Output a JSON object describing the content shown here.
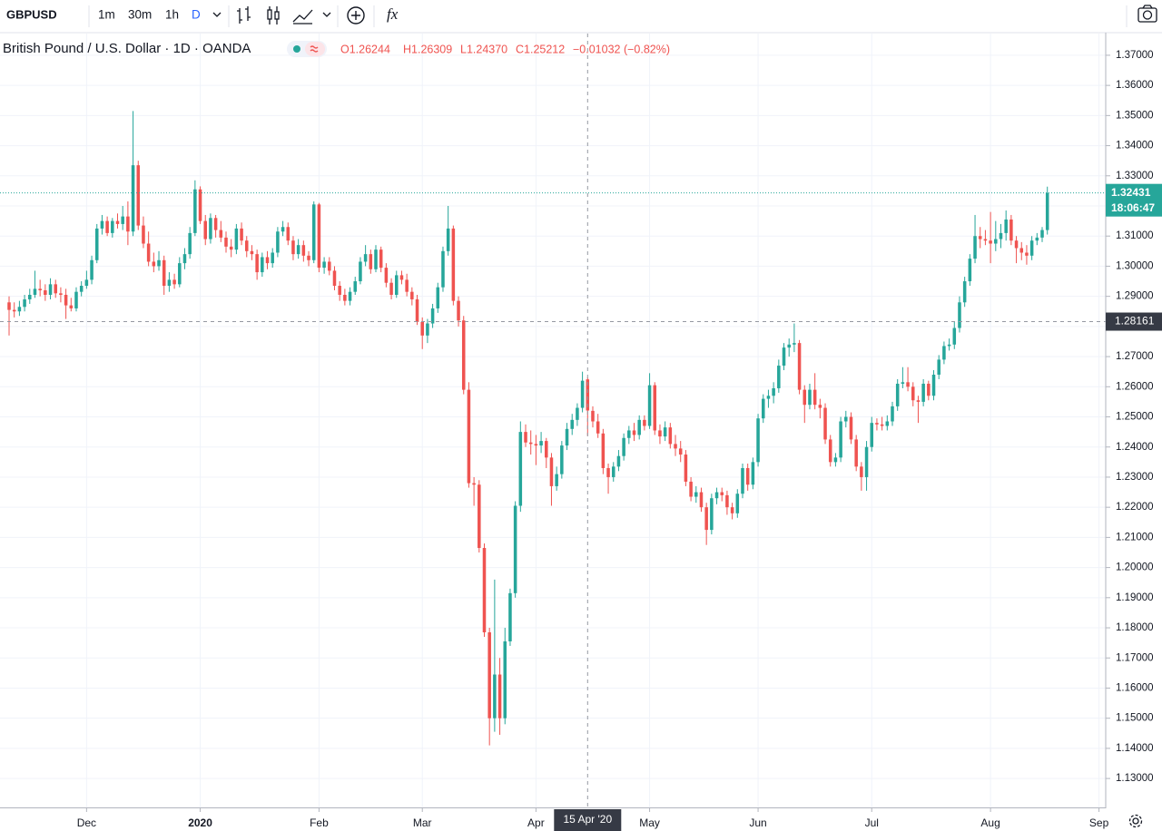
{
  "toolbar": {
    "symbol": "GBPUSD",
    "intervals": [
      "1m",
      "30m",
      "1h",
      "D"
    ],
    "active_interval": 3,
    "functions": "fx"
  },
  "chart_data": {
    "type": "candlestick",
    "title": "British Pound / U.S. Dollar · 1D · OANDA",
    "ohlc_readout": [
      "O1.26244",
      "H1.26309",
      "L1.24370",
      "C1.25212",
      "−0.01032 (−0.82%)"
    ],
    "up_color": "#26a69a",
    "down_color": "#ef5350",
    "grid": true,
    "ylim": [
      1.1204,
      1.3772
    ],
    "yticks": [
      {
        "value": 1.13,
        "label": "1.13000"
      },
      {
        "value": 1.14,
        "label": "1.14000"
      },
      {
        "value": 1.15,
        "label": "1.15000"
      },
      {
        "value": 1.16,
        "label": "1.16000"
      },
      {
        "value": 1.17,
        "label": "1.17000"
      },
      {
        "value": 1.18,
        "label": "1.18000"
      },
      {
        "value": 1.19,
        "label": "1.19000"
      },
      {
        "value": 1.2,
        "label": "1.20000"
      },
      {
        "value": 1.21,
        "label": "1.21000"
      },
      {
        "value": 1.22,
        "label": "1.22000"
      },
      {
        "value": 1.23,
        "label": "1.23000"
      },
      {
        "value": 1.24,
        "label": "1.24000"
      },
      {
        "value": 1.25,
        "label": "1.25000"
      },
      {
        "value": 1.26,
        "label": "1.26000"
      },
      {
        "value": 1.27,
        "label": "1.27000"
      },
      {
        "value": 1.28,
        "label": "1.28000"
      },
      {
        "value": 1.29,
        "label": "1.29000"
      },
      {
        "value": 1.3,
        "label": "1.30000"
      },
      {
        "value": 1.31,
        "label": "1.31000"
      },
      {
        "value": 1.32,
        "label": "1.32000"
      },
      {
        "value": 1.33,
        "label": "1.33000"
      },
      {
        "value": 1.34,
        "label": "1.34000"
      },
      {
        "value": 1.35,
        "label": "1.35000"
      },
      {
        "value": 1.36,
        "label": "1.36000"
      },
      {
        "value": 1.37,
        "label": "1.37000"
      }
    ],
    "xlim": [
      -1.76,
      212.3
    ],
    "xticks": [
      {
        "value": 15,
        "label": "Dec"
      },
      {
        "value": 37,
        "label": "2020"
      },
      {
        "value": 60,
        "label": "Feb"
      },
      {
        "value": 80,
        "label": "Mar"
      },
      {
        "value": 102,
        "label": "Apr"
      },
      {
        "value": 124,
        "label": "May"
      },
      {
        "value": 145,
        "label": "Jun"
      },
      {
        "value": 167,
        "label": "Jul"
      },
      {
        "value": 190,
        "label": "Aug"
      },
      {
        "value": 211,
        "label": "Sep"
      }
    ],
    "last_price": 1.32431,
    "countdown": "18:06:47",
    "crosshair": {
      "x": 112,
      "y": 1.28161,
      "x_label": "15 Apr '20"
    },
    "candles": [
      [
        1.288,
        1.29,
        1.277,
        1.2855
      ],
      [
        1.2855,
        1.288,
        1.283,
        1.285
      ],
      [
        1.285,
        1.2885,
        1.2835,
        1.2865
      ],
      [
        1.2865,
        1.2905,
        1.285,
        1.289
      ],
      [
        1.289,
        1.2925,
        1.2875,
        1.2905
      ],
      [
        1.2905,
        1.2985,
        1.2895,
        1.2925
      ],
      [
        1.2925,
        1.2955,
        1.29,
        1.292
      ],
      [
        1.292,
        1.294,
        1.2885,
        1.2905
      ],
      [
        1.2905,
        1.296,
        1.289,
        1.294
      ],
      [
        1.294,
        1.2955,
        1.2895,
        1.291
      ],
      [
        1.291,
        1.293,
        1.288,
        1.2905
      ],
      [
        1.2905,
        1.2925,
        1.2825,
        1.287
      ],
      [
        1.287,
        1.2895,
        1.285,
        1.286
      ],
      [
        1.286,
        1.293,
        1.285,
        1.2915
      ],
      [
        1.2915,
        1.295,
        1.29,
        1.2935
      ],
      [
        1.2935,
        1.2985,
        1.2925,
        1.2955
      ],
      [
        1.2955,
        1.3035,
        1.294,
        1.302
      ],
      [
        1.302,
        1.314,
        1.301,
        1.3125
      ],
      [
        1.3125,
        1.317,
        1.3105,
        1.315
      ],
      [
        1.315,
        1.3165,
        1.31,
        1.311
      ],
      [
        1.311,
        1.316,
        1.3095,
        1.315
      ],
      [
        1.315,
        1.3175,
        1.3125,
        1.314
      ],
      [
        1.314,
        1.32,
        1.312,
        1.3165
      ],
      [
        1.3165,
        1.3215,
        1.307,
        1.3115
      ],
      [
        1.3115,
        1.3515,
        1.31,
        1.3335
      ],
      [
        1.3335,
        1.335,
        1.312,
        1.3135
      ],
      [
        1.3135,
        1.3165,
        1.306,
        1.3075
      ],
      [
        1.3075,
        1.3115,
        1.3,
        1.3015
      ],
      [
        1.3015,
        1.3045,
        1.298,
        1.3
      ],
      [
        1.3,
        1.305,
        1.2985,
        1.302
      ],
      [
        1.302,
        1.3035,
        1.2905,
        1.2935
      ],
      [
        1.2935,
        1.298,
        1.2915,
        1.2955
      ],
      [
        1.2955,
        1.2975,
        1.2925,
        1.294
      ],
      [
        1.294,
        1.303,
        1.293,
        1.301
      ],
      [
        1.301,
        1.306,
        1.299,
        1.304
      ],
      [
        1.304,
        1.313,
        1.3025,
        1.311
      ],
      [
        1.311,
        1.3285,
        1.31,
        1.3255
      ],
      [
        1.3255,
        1.3265,
        1.314,
        1.315
      ],
      [
        1.315,
        1.317,
        1.307,
        1.309
      ],
      [
        1.309,
        1.3175,
        1.3075,
        1.316
      ],
      [
        1.316,
        1.317,
        1.3095,
        1.312
      ],
      [
        1.312,
        1.315,
        1.308,
        1.3095
      ],
      [
        1.3095,
        1.3115,
        1.3045,
        1.3065
      ],
      [
        1.3065,
        1.309,
        1.303,
        1.3055
      ],
      [
        1.3055,
        1.314,
        1.304,
        1.3125
      ],
      [
        1.3125,
        1.3145,
        1.307,
        1.3085
      ],
      [
        1.3085,
        1.31,
        1.303,
        1.305
      ],
      [
        1.305,
        1.307,
        1.302,
        1.304
      ],
      [
        1.304,
        1.3055,
        1.2955,
        1.298
      ],
      [
        1.298,
        1.3045,
        1.2965,
        1.303
      ],
      [
        1.303,
        1.305,
        1.299,
        1.301
      ],
      [
        1.301,
        1.306,
        1.2995,
        1.3045
      ],
      [
        1.3045,
        1.313,
        1.303,
        1.3115
      ],
      [
        1.3115,
        1.315,
        1.31,
        1.313
      ],
      [
        1.313,
        1.3145,
        1.307,
        1.3085
      ],
      [
        1.3085,
        1.31,
        1.302,
        1.304
      ],
      [
        1.304,
        1.309,
        1.3025,
        1.307
      ],
      [
        1.307,
        1.3085,
        1.3015,
        1.3035
      ],
      [
        1.3035,
        1.305,
        1.3,
        1.302
      ],
      [
        1.302,
        1.3215,
        1.301,
        1.3205
      ],
      [
        1.3205,
        1.321,
        1.298,
        1.2995
      ],
      [
        1.2995,
        1.303,
        1.2975,
        1.3015
      ],
      [
        1.3015,
        1.303,
        1.297,
        1.2985
      ],
      [
        1.2985,
        1.3,
        1.292,
        1.2935
      ],
      [
        1.2935,
        1.295,
        1.2885,
        1.2905
      ],
      [
        1.2905,
        1.2925,
        1.287,
        1.2885
      ],
      [
        1.2885,
        1.293,
        1.287,
        1.2915
      ],
      [
        1.2915,
        1.2965,
        1.2905,
        1.295
      ],
      [
        1.295,
        1.303,
        1.294,
        1.3015
      ],
      [
        1.3015,
        1.307,
        1.3,
        1.304
      ],
      [
        1.304,
        1.3055,
        1.2975,
        1.299
      ],
      [
        1.299,
        1.307,
        1.298,
        1.3055
      ],
      [
        1.3055,
        1.3065,
        1.298,
        1.2995
      ],
      [
        1.2995,
        1.301,
        1.293,
        1.2945
      ],
      [
        1.2945,
        1.296,
        1.289,
        1.2905
      ],
      [
        1.2905,
        1.2985,
        1.2895,
        1.297
      ],
      [
        1.297,
        1.2985,
        1.294,
        1.2955
      ],
      [
        1.2955,
        1.2975,
        1.29,
        1.2915
      ],
      [
        1.2915,
        1.293,
        1.287,
        1.289
      ],
      [
        1.289,
        1.2905,
        1.2805,
        1.2815
      ],
      [
        1.2815,
        1.283,
        1.2725,
        1.277
      ],
      [
        1.277,
        1.2825,
        1.2745,
        1.281
      ],
      [
        1.281,
        1.2875,
        1.2795,
        1.286
      ],
      [
        1.286,
        1.2945,
        1.2845,
        1.293
      ],
      [
        1.293,
        1.3065,
        1.2915,
        1.305
      ],
      [
        1.305,
        1.32,
        1.3035,
        1.3125
      ],
      [
        1.3125,
        1.3135,
        1.287,
        1.2885
      ],
      [
        1.2885,
        1.29,
        1.28,
        1.282
      ],
      [
        1.282,
        1.2835,
        1.2575,
        1.259
      ],
      [
        1.259,
        1.2615,
        1.2265,
        1.228
      ],
      [
        1.228,
        1.23,
        1.2205,
        1.2275
      ],
      [
        1.2275,
        1.229,
        1.205,
        1.2065
      ],
      [
        1.2065,
        1.208,
        1.177,
        1.1785
      ],
      [
        1.1785,
        1.18,
        1.141,
        1.15
      ],
      [
        1.15,
        1.196,
        1.1455,
        1.1645
      ],
      [
        1.1645,
        1.17,
        1.1445,
        1.15
      ],
      [
        1.15,
        1.18,
        1.148,
        1.1755
      ],
      [
        1.1755,
        1.193,
        1.174,
        1.1915
      ],
      [
        1.1915,
        1.222,
        1.19,
        1.2205
      ],
      [
        1.2205,
        1.2485,
        1.2185,
        1.245
      ],
      [
        1.245,
        1.2475,
        1.24,
        1.2415
      ],
      [
        1.2415,
        1.2455,
        1.2375,
        1.241
      ],
      [
        1.241,
        1.244,
        1.234,
        1.2405
      ],
      [
        1.2405,
        1.245,
        1.238,
        1.242
      ],
      [
        1.242,
        1.243,
        1.233,
        1.2365
      ],
      [
        1.2365,
        1.238,
        1.2205,
        1.227
      ],
      [
        1.227,
        1.2335,
        1.2255,
        1.231
      ],
      [
        1.231,
        1.242,
        1.2295,
        1.2405
      ],
      [
        1.2405,
        1.248,
        1.239,
        1.246
      ],
      [
        1.246,
        1.251,
        1.244,
        1.249
      ],
      [
        1.249,
        1.2545,
        1.247,
        1.253
      ],
      [
        1.253,
        1.265,
        1.2515,
        1.262
      ],
      [
        1.26244,
        1.26309,
        1.2437,
        1.25212
      ],
      [
        1.252,
        1.2535,
        1.2465,
        1.2485
      ],
      [
        1.2485,
        1.251,
        1.243,
        1.2445
      ],
      [
        1.2445,
        1.246,
        1.231,
        1.233
      ],
      [
        1.233,
        1.2345,
        1.2245,
        1.23
      ],
      [
        1.23,
        1.235,
        1.2285,
        1.2335
      ],
      [
        1.2335,
        1.239,
        1.232,
        1.237
      ],
      [
        1.237,
        1.2445,
        1.2355,
        1.243
      ],
      [
        1.243,
        1.247,
        1.241,
        1.2455
      ],
      [
        1.2455,
        1.248,
        1.242,
        1.244
      ],
      [
        1.244,
        1.2505,
        1.2425,
        1.249
      ],
      [
        1.249,
        1.2505,
        1.2455,
        1.247
      ],
      [
        1.247,
        1.2645,
        1.246,
        1.2605
      ],
      [
        1.2605,
        1.2615,
        1.244,
        1.2455
      ],
      [
        1.2455,
        1.2475,
        1.241,
        1.2435
      ],
      [
        1.2435,
        1.2485,
        1.242,
        1.2465
      ],
      [
        1.2465,
        1.248,
        1.2395,
        1.241
      ],
      [
        1.241,
        1.244,
        1.237,
        1.2395
      ],
      [
        1.2395,
        1.242,
        1.235,
        1.2375
      ],
      [
        1.2375,
        1.239,
        1.227,
        1.2285
      ],
      [
        1.2285,
        1.23,
        1.222,
        1.2235
      ],
      [
        1.2235,
        1.227,
        1.2215,
        1.225
      ],
      [
        1.225,
        1.2265,
        1.2185,
        1.22
      ],
      [
        1.22,
        1.2215,
        1.2075,
        1.2125
      ],
      [
        1.2125,
        1.2245,
        1.211,
        1.223
      ],
      [
        1.223,
        1.2265,
        1.221,
        1.225
      ],
      [
        1.225,
        1.2265,
        1.222,
        1.224
      ],
      [
        1.224,
        1.2255,
        1.2175,
        1.22
      ],
      [
        1.22,
        1.2215,
        1.216,
        1.218
      ],
      [
        1.218,
        1.226,
        1.2165,
        1.2245
      ],
      [
        1.2245,
        1.2345,
        1.223,
        1.233
      ],
      [
        1.233,
        1.2345,
        1.2255,
        1.2275
      ],
      [
        1.2275,
        1.2365,
        1.226,
        1.235
      ],
      [
        1.235,
        1.251,
        1.2335,
        1.2495
      ],
      [
        1.2495,
        1.2575,
        1.248,
        1.256
      ],
      [
        1.256,
        1.259,
        1.253,
        1.257
      ],
      [
        1.257,
        1.2615,
        1.2545,
        1.2595
      ],
      [
        1.2595,
        1.269,
        1.258,
        1.267
      ],
      [
        1.267,
        1.2745,
        1.2655,
        1.273
      ],
      [
        1.273,
        1.276,
        1.27,
        1.274
      ],
      [
        1.274,
        1.281,
        1.2715,
        1.2745
      ],
      [
        1.2745,
        1.2755,
        1.2575,
        1.259
      ],
      [
        1.259,
        1.2605,
        1.248,
        1.254
      ],
      [
        1.254,
        1.261,
        1.2525,
        1.259
      ],
      [
        1.259,
        1.2645,
        1.2525,
        1.254
      ],
      [
        1.254,
        1.256,
        1.2495,
        1.253
      ],
      [
        1.253,
        1.2545,
        1.241,
        1.2425
      ],
      [
        1.2425,
        1.244,
        1.2335,
        1.235
      ],
      [
        1.235,
        1.238,
        1.2335,
        1.2365
      ],
      [
        1.2365,
        1.25,
        1.235,
        1.2485
      ],
      [
        1.2485,
        1.252,
        1.2465,
        1.25
      ],
      [
        1.25,
        1.2515,
        1.241,
        1.2425
      ],
      [
        1.2425,
        1.244,
        1.232,
        1.2335
      ],
      [
        1.2335,
        1.235,
        1.2255,
        1.23
      ],
      [
        1.23,
        1.242,
        1.2255,
        1.24
      ],
      [
        1.24,
        1.25,
        1.2385,
        1.248
      ],
      [
        1.248,
        1.2495,
        1.2455,
        1.2475
      ],
      [
        1.2475,
        1.25,
        1.2455,
        1.247
      ],
      [
        1.247,
        1.2505,
        1.2455,
        1.2485
      ],
      [
        1.2485,
        1.255,
        1.247,
        1.2535
      ],
      [
        1.2535,
        1.2625,
        1.252,
        1.261
      ],
      [
        1.261,
        1.2665,
        1.2595,
        1.2615
      ],
      [
        1.2615,
        1.2665,
        1.2585,
        1.26
      ],
      [
        1.26,
        1.2615,
        1.2535,
        1.2555
      ],
      [
        1.2555,
        1.257,
        1.248,
        1.255
      ],
      [
        1.255,
        1.2625,
        1.2535,
        1.261
      ],
      [
        1.261,
        1.262,
        1.2555,
        1.257
      ],
      [
        1.257,
        1.2655,
        1.2555,
        1.264
      ],
      [
        1.264,
        1.2705,
        1.2625,
        1.269
      ],
      [
        1.269,
        1.275,
        1.2675,
        1.2735
      ],
      [
        1.2735,
        1.276,
        1.272,
        1.274
      ],
      [
        1.274,
        1.2815,
        1.2725,
        1.2795
      ],
      [
        1.2795,
        1.29,
        1.278,
        1.288
      ],
      [
        1.288,
        1.2965,
        1.2865,
        1.295
      ],
      [
        1.295,
        1.304,
        1.2935,
        1.3025
      ],
      [
        1.3025,
        1.317,
        1.301,
        1.31
      ],
      [
        1.31,
        1.313,
        1.306,
        1.309
      ],
      [
        1.309,
        1.312,
        1.307,
        1.3085
      ],
      [
        1.3085,
        1.318,
        1.301,
        1.3075
      ],
      [
        1.3075,
        1.315,
        1.305,
        1.309
      ],
      [
        1.309,
        1.314,
        1.306,
        1.311
      ],
      [
        1.311,
        1.3185,
        1.3085,
        1.3155
      ],
      [
        1.3155,
        1.317,
        1.307,
        1.3085
      ],
      [
        1.3085,
        1.31,
        1.301,
        1.306
      ],
      [
        1.306,
        1.308,
        1.302,
        1.3045
      ],
      [
        1.3045,
        1.307,
        1.3005,
        1.3035
      ],
      [
        1.3035,
        1.31,
        1.302,
        1.3085
      ],
      [
        1.3085,
        1.311,
        1.307,
        1.3095
      ],
      [
        1.3095,
        1.313,
        1.308,
        1.312
      ],
      [
        1.312,
        1.3264,
        1.3105,
        1.32431
      ]
    ]
  }
}
